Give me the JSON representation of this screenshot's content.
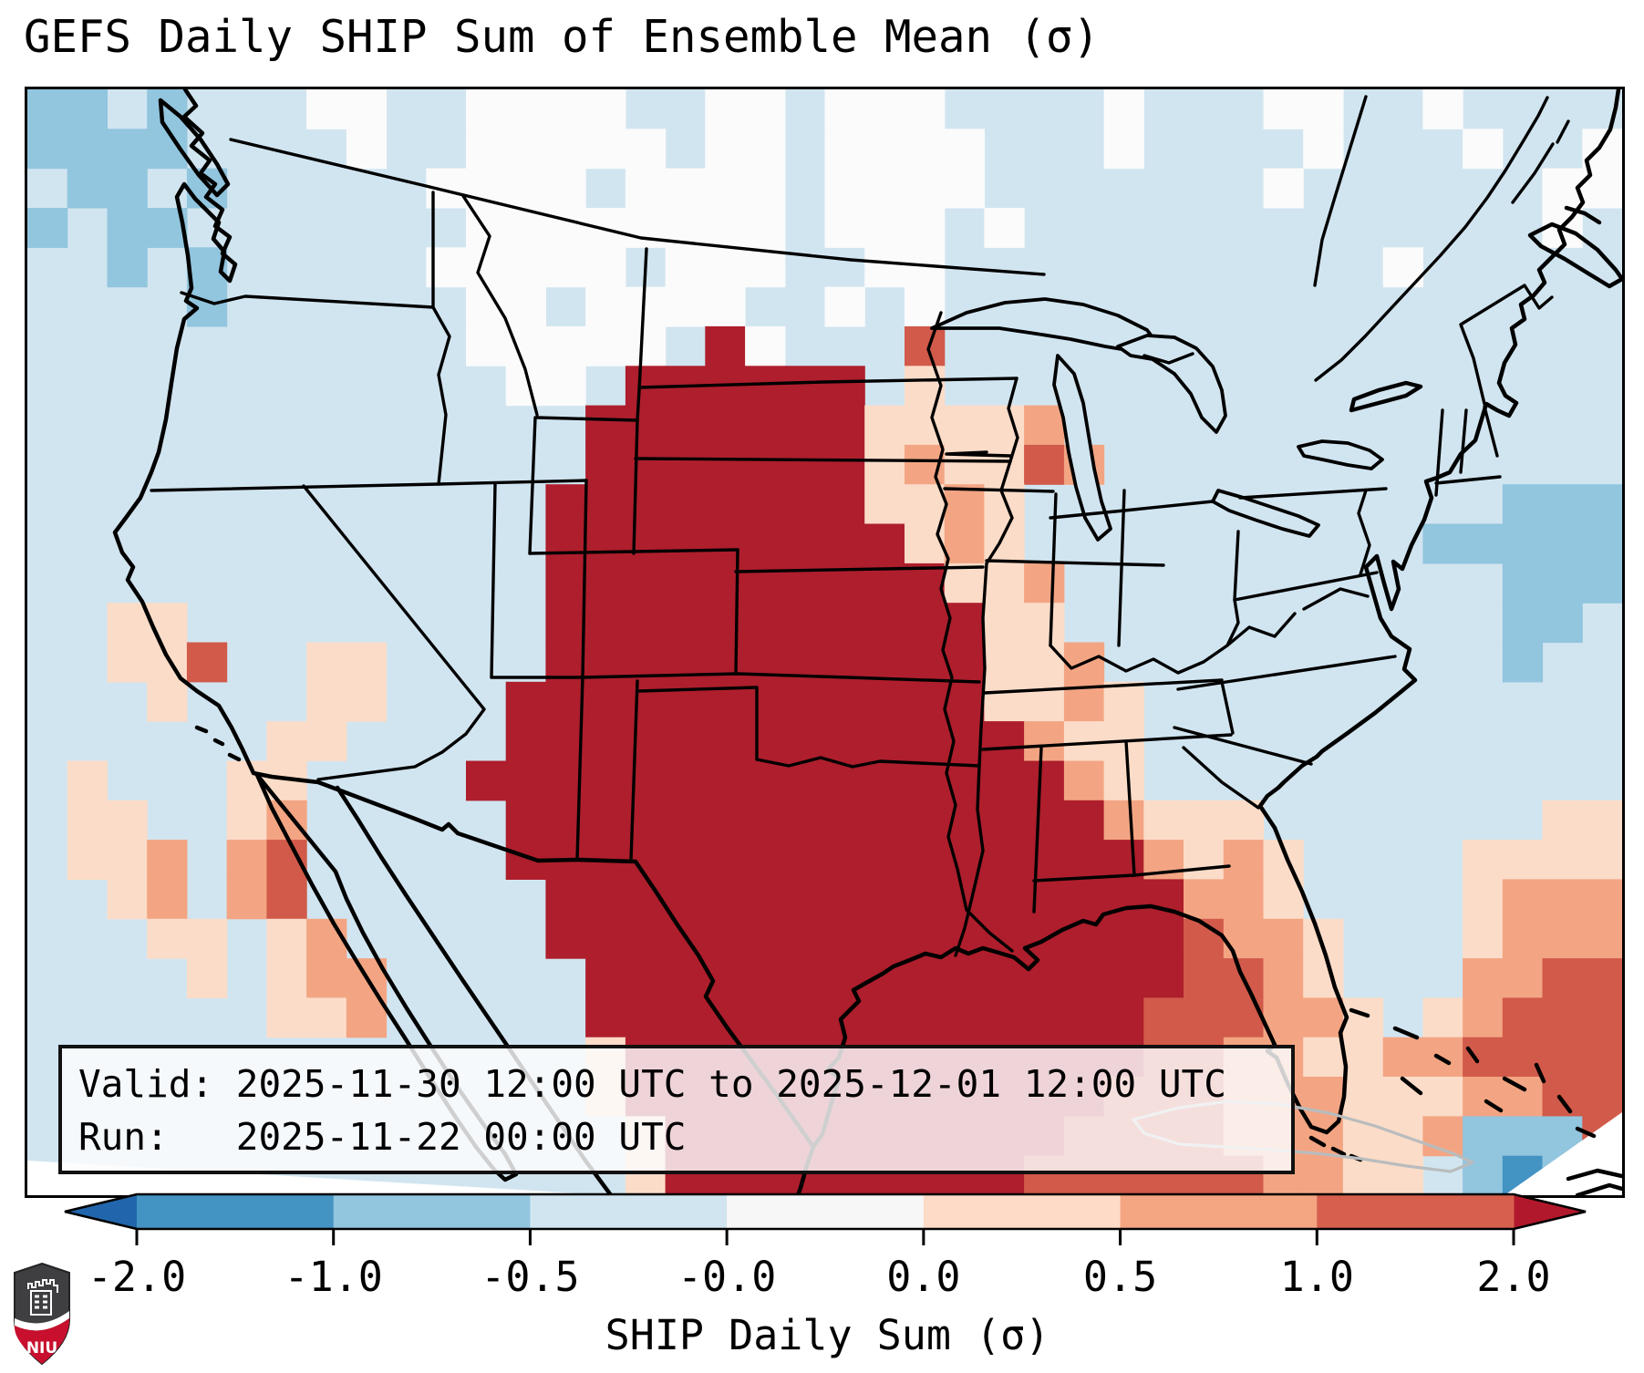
{
  "title": "GEFS Daily SHIP Sum of Ensemble Mean (σ)",
  "info_box": {
    "valid_line": "Valid: 2025-11-30 12:00 UTC to 2025-12-01 12:00 UTC",
    "run_line": "Run:   2025-11-22 00:00 UTC"
  },
  "colorbar": {
    "label": "SHIP Daily Sum (σ)",
    "ticks": [
      "-2.0",
      "-1.0",
      "-0.5",
      "-0.0",
      "0.0",
      "0.5",
      "1.0",
      "2.0"
    ],
    "segment_colors": [
      "#4393c3",
      "#92c5de",
      "#d1e5f0",
      "#f7f7f7",
      "#fddbc7",
      "#f4a582",
      "#d6604d"
    ],
    "arrow_left_color": "#2166ac",
    "arrow_right_color": "#b2182b",
    "outline_color": "#000000"
  },
  "logo": {
    "text": "NIU",
    "shield_dark": "#3f3f41",
    "band_red": "#c8102e"
  },
  "chart_data": {
    "type": "heatmap",
    "title": "GEFS Daily SHIP Sum of Ensemble Mean (σ)",
    "colorbar_label": "SHIP Daily Sum (σ)",
    "valid": "2025-11-30 12:00 UTC to 2025-12-01 12:00 UTC",
    "run": "2025-11-22 00:00 UTC",
    "colorbar_ticks": [
      "-2.0",
      "-1.0",
      "-0.5",
      "-0.0",
      "0.0",
      "0.5",
      "1.0",
      "2.0"
    ],
    "bins": [
      {
        "char": "B",
        "range_sigma": "-2.0 to -1.0",
        "color": "#4393c3"
      },
      {
        "char": "b",
        "range_sigma": "-1.0 to -0.5",
        "color": "#92c5de"
      },
      {
        "char": ".",
        "range_sigma": "-0.5 to -0.0",
        "color": "#d1e5f0"
      },
      {
        "char": "w",
        "range_sigma": "-0.0 to 0.0",
        "color": "#fbfbfb"
      },
      {
        "char": "p",
        "range_sigma": "0.0 to 0.5",
        "color": "#fbdcc8"
      },
      {
        "char": "s",
        "range_sigma": "0.5 to 1.0",
        "color": "#f3a583"
      },
      {
        "char": "r",
        "range_sigma": "1.0 to 2.0",
        "color": "#d15a4a"
      },
      {
        "char": "R",
        "range_sigma": "> 2.0",
        "color": "#ae1e2c"
      }
    ],
    "palette": {
      ".": "#d1e5f0",
      "b": "#92c5de",
      "B": "#4393c3",
      "w": "#fbfbfb",
      "p": "#fbdcc8",
      "s": "#f3a583",
      "r": "#d15a4a",
      "R": "#ae1e2c"
    },
    "grid": {
      "cols": 40,
      "rows": 28,
      "cells": [
        "bb.b...ww..wwww..ww.www....w...ww..w....",
        "bbbb....w..wwwww.ww.wwww...w....w...w..w",
        ".bb.b.....wwww.wwww.wwww.......w......ww",
        "b.bb.......wwwwwwww.www.w.............w.",
        "..b.b.....wwwww.www..ww...........w.....",
        "....b......ww.wwww..w.w.................",
        "...........wwwww.Rw...r.................",
        "............ww.RRRRRR.p.................",
        "..............RRRRRRRpppps..............",
        "..............RRRRRRRpspprs.............",
        ".............RRRRRRRRppsp............bbb.",
        ".............RRRRRRRRRpsp..........bbbbb",
        ".............RRRRRRRRRRpps...........bbb.",
        "..pp.........RRRRRRRRRRRpp...........bb.",
        "..ppr..pp....RRRRRRRRRRRpps..........b..",
        "...p...pp...RRRRRRRRRRRRppsp............",
        "......pp....RRRRRRRRRRRRRspp............",
        ".p...pp....RRRRRRRRRRRRRRRsp............",
        ".pp..ps.....RRRRRRRRRRRRRRRsppp.......pp",
        ".pps.sr.....RRRRRRRRRRRRRRRRspsp....pppp",
        "..ps.sr......RRRRRRRRRRRRRRRRssp....psss",
        "...pp.ps.....RRRRRRRRRRRRRRRRrssp...psss",
        "....p.pss.....RRRRRRRRRRRRRRRrrsp...ssrr",
        "......pps.....RRRRRRRRRRRRRRrrrssp.psrrr",
        "..............pRRRRRRRRRRRRRrrssppssrrrr",
        "..............pRRRRRRRRRRRRrrrssspppssrr",
        "...............pRRRRRRRRRRrrrrsssppsbbbr",
        "...............pRRRRRRRRRrrrrrrsspp.bBbs"
      ]
    }
  }
}
